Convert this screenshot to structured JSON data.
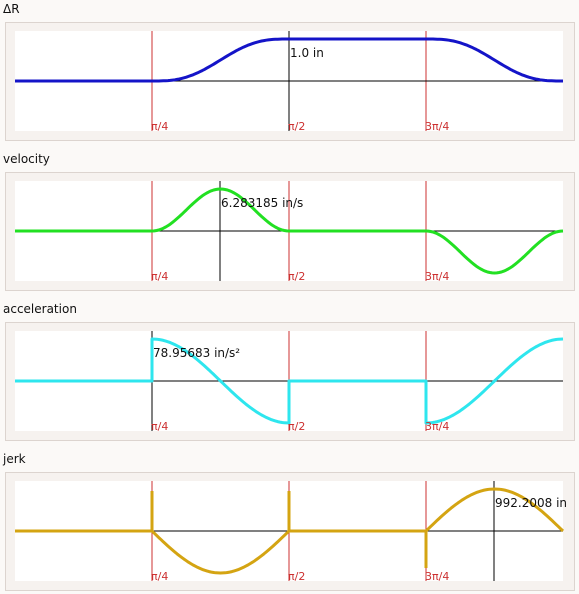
{
  "charts": [
    {
      "title": "ΔR",
      "color": "#1414c8",
      "peak_label": "1.0 in",
      "kind": "disp"
    },
    {
      "title": "velocity",
      "color": "#22e022",
      "peak_label": "6.283185 in/s",
      "kind": "vel"
    },
    {
      "title": "acceleration",
      "color": "#2ee6ee",
      "peak_label": "78.95683 in/s²",
      "kind": "acc"
    },
    {
      "title": "jerk",
      "color": "#d4a412",
      "peak_label": "992.2008 in",
      "kind": "jerk"
    }
  ],
  "tick_labels": [
    "π/4",
    "π/2",
    "3π/4"
  ],
  "chart_data": [
    {
      "type": "line",
      "title": "ΔR",
      "x_ticks": [
        "π/4",
        "π/2",
        "3π/4"
      ],
      "x_range": [
        0,
        1
      ],
      "segments": "rest until π/4, cycloidal rise to 1.0 in by π/2, dwell until 3π/4, cycloidal return to 0",
      "peak_value": 1.0,
      "peak_unit": "in",
      "series": [
        {
          "x": [
            0.0,
            0.25,
            0.375,
            0.5,
            0.75,
            0.875,
            1.0
          ],
          "y": [
            0,
            0,
            0.5,
            1.0,
            1.0,
            0.5,
            0
          ]
        }
      ]
    },
    {
      "type": "line",
      "title": "velocity",
      "x_ticks": [
        "π/4",
        "π/2",
        "3π/4"
      ],
      "x_range": [
        0,
        1
      ],
      "peak_value": 6.283185,
      "peak_unit": "in/s",
      "series": [
        {
          "x": [
            0.0,
            0.25,
            0.375,
            0.5,
            0.75,
            0.875,
            1.0
          ],
          "y": [
            0,
            0,
            6.283185,
            0,
            0,
            -6.283185,
            0
          ]
        }
      ]
    },
    {
      "type": "line",
      "title": "acceleration",
      "x_ticks": [
        "π/4",
        "π/2",
        "3π/4"
      ],
      "x_range": [
        0,
        1
      ],
      "peak_value": 78.95683,
      "peak_unit": "in/s²",
      "series": [
        {
          "x": [
            0.0,
            0.25,
            0.3125,
            0.4375,
            0.5,
            0.75,
            0.8125,
            0.9375,
            1.0
          ],
          "y": [
            0,
            78.95683,
            55.8,
            -55.8,
            -78.95683,
            -78.95683,
            -55.8,
            55.8,
            78.95683
          ]
        }
      ]
    },
    {
      "type": "line",
      "title": "jerk",
      "x_ticks": [
        "π/4",
        "π/2",
        "3π/4"
      ],
      "x_range": [
        0,
        1
      ],
      "peak_value": 992.2008,
      "peak_unit": "in",
      "series": [
        {
          "x": [
            0.0,
            0.25,
            0.375,
            0.5,
            0.75,
            0.875,
            1.0
          ],
          "y": [
            0,
            0,
            -992.2008,
            0,
            0,
            992.2008,
            0
          ]
        }
      ]
    }
  ]
}
